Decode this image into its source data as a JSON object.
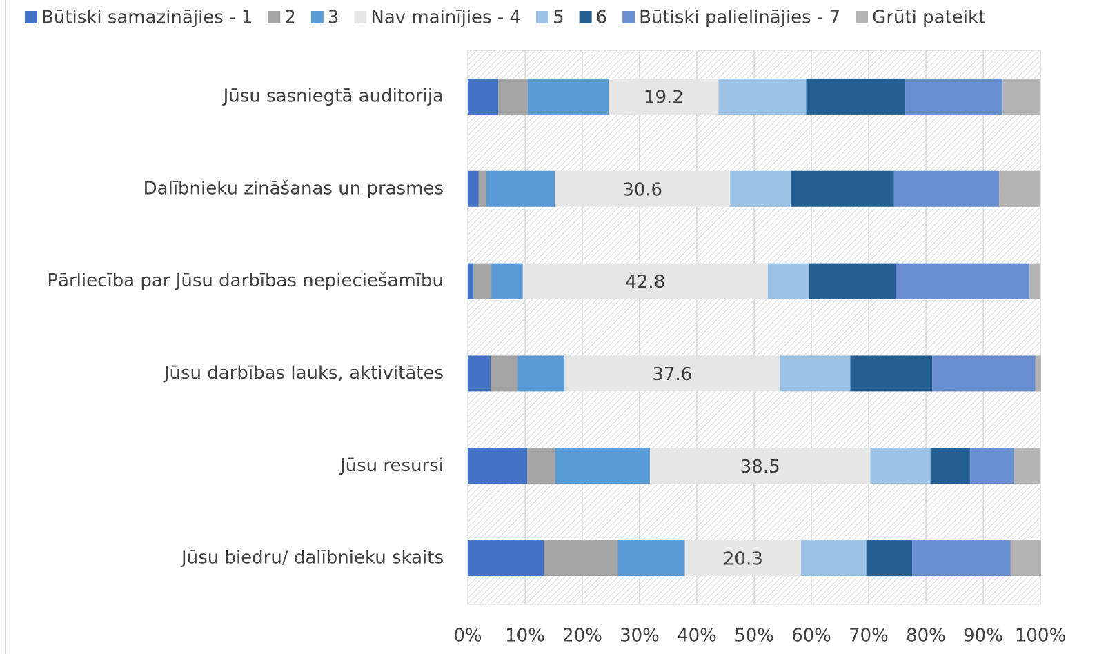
{
  "chart_data": {
    "type": "stacked_barh",
    "categories": [
      "Jūsu sasniegtā auditorija",
      "Dalībnieku zināšanas un prasmes",
      "Pārliecība par Jūsu darbības nepieciešamību",
      "Jūsu darbības lauks, aktivitātes",
      "Jūsu resursi",
      "Jūsu biedru/ dalībnieku skaits"
    ],
    "series": [
      {
        "name": "Būtiski samazinājies - 1",
        "color": "#4472c4",
        "values": [
          5.3,
          1.9,
          1.0,
          4.0,
          10.4,
          13.3
        ]
      },
      {
        "name": "2",
        "color": "#a5a5a5",
        "values": [
          5.2,
          1.3,
          3.1,
          4.7,
          4.9,
          12.9
        ]
      },
      {
        "name": "3",
        "color": "#5b9bd5",
        "values": [
          14.1,
          12.0,
          5.5,
          8.2,
          16.5,
          11.7
        ]
      },
      {
        "name": "Nav mainījies - 4",
        "color": "#e7e6e6",
        "values": [
          19.2,
          30.6,
          42.8,
          37.6,
          38.5,
          20.3
        ],
        "show_labels": true
      },
      {
        "name": "5",
        "color": "#9dc3e6",
        "values": [
          15.3,
          10.6,
          7.2,
          12.3,
          10.5,
          11.4
        ]
      },
      {
        "name": "6",
        "color": "#255e91",
        "values": [
          17.3,
          18.0,
          15.1,
          14.3,
          6.9,
          8.0
        ]
      },
      {
        "name": "Būtiski palielinājies - 7",
        "color": "#698ed0",
        "values": [
          17.0,
          18.4,
          23.4,
          18.0,
          7.7,
          17.2
        ]
      },
      {
        "name": "Grūti pateikt",
        "color": "#b4b4b4",
        "values": [
          6.6,
          7.2,
          1.9,
          1.0,
          4.6,
          5.3
        ]
      }
    ],
    "xlim": [
      0,
      100
    ],
    "xticks": [
      {
        "value": 0,
        "label": "0%"
      },
      {
        "value": 10,
        "label": "10%"
      },
      {
        "value": 20,
        "label": "20%"
      },
      {
        "value": 30,
        "label": "30%"
      },
      {
        "value": 40,
        "label": "40%"
      },
      {
        "value": 50,
        "label": "50%"
      },
      {
        "value": 60,
        "label": "60%"
      },
      {
        "value": 70,
        "label": "70%"
      },
      {
        "value": 80,
        "label": "80%"
      },
      {
        "value": 90,
        "label": "90%"
      },
      {
        "value": 100,
        "label": "100%"
      }
    ],
    "grid": true,
    "legend": "top"
  }
}
